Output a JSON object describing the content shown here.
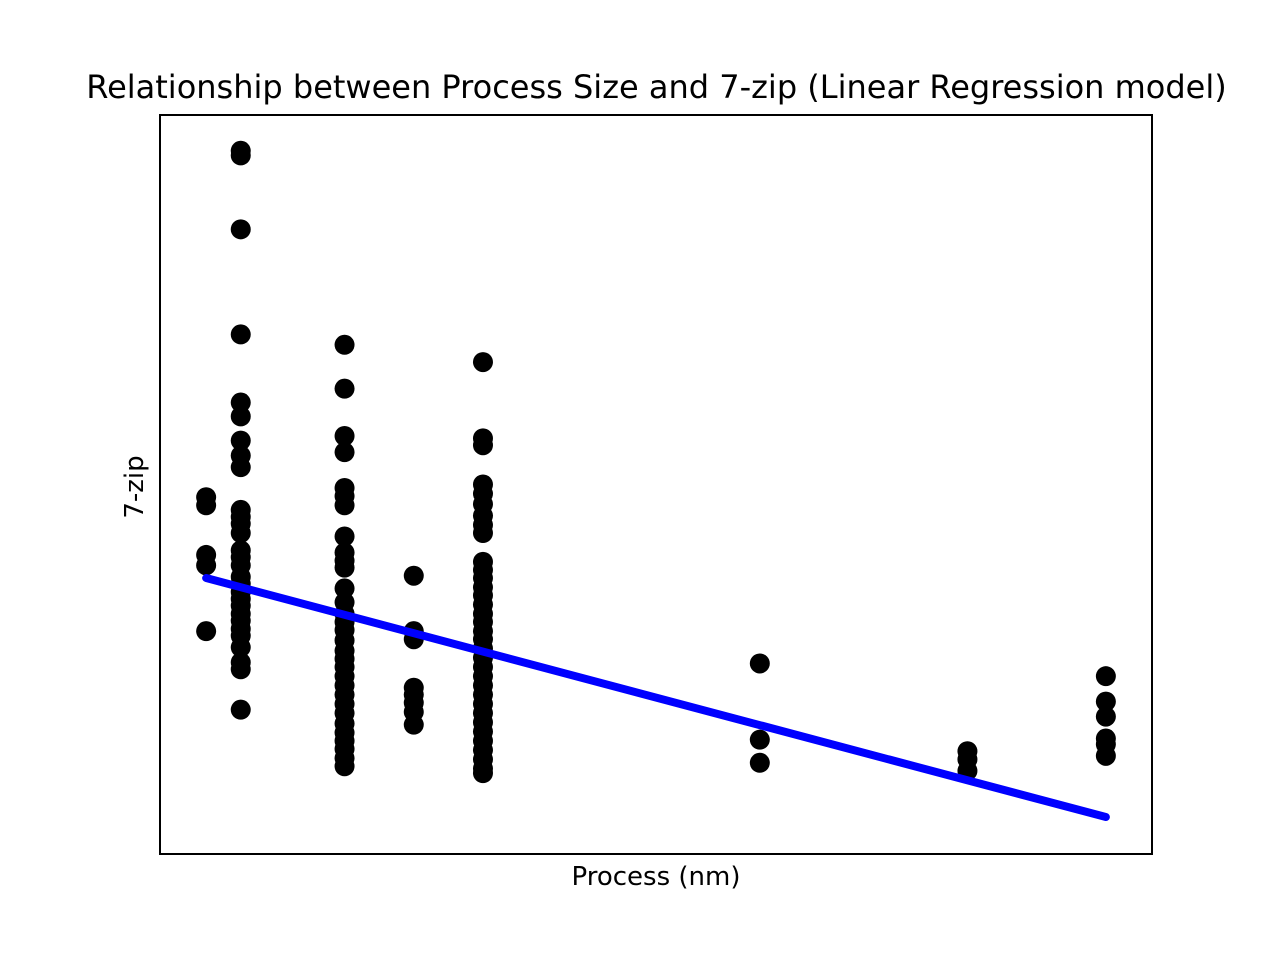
{
  "chart_data": {
    "type": "scatter",
    "title": "Relationship between Process Size and 7-zip (Linear Regression model)",
    "xlabel": "Process (nm)",
    "ylabel": "7-zip",
    "xlim": [
      -2,
      41
    ],
    "ylim": [
      -2,
      62
    ],
    "grid": false,
    "ticks_visible": false,
    "colors": {
      "points": "#000000",
      "regression_line": "#0000ff",
      "frame": "#000000"
    },
    "series": [
      {
        "type": "scatter",
        "points": [
          {
            "x": 0,
            "y": 28.9
          },
          {
            "x": 0,
            "y": 28.2
          },
          {
            "x": 0,
            "y": 23.9
          },
          {
            "x": 0,
            "y": 23.0
          },
          {
            "x": 0,
            "y": 17.3
          },
          {
            "x": 1.5,
            "y": 58.9
          },
          {
            "x": 1.5,
            "y": 58.5
          },
          {
            "x": 1.5,
            "y": 52.1
          },
          {
            "x": 1.5,
            "y": 43.0
          },
          {
            "x": 1.5,
            "y": 37.1
          },
          {
            "x": 1.5,
            "y": 35.9
          },
          {
            "x": 1.5,
            "y": 33.8
          },
          {
            "x": 1.5,
            "y": 32.5
          },
          {
            "x": 1.5,
            "y": 31.5
          },
          {
            "x": 1.5,
            "y": 27.8
          },
          {
            "x": 1.5,
            "y": 27.2
          },
          {
            "x": 1.5,
            "y": 26.6
          },
          {
            "x": 1.5,
            "y": 25.8
          },
          {
            "x": 1.5,
            "y": 24.3
          },
          {
            "x": 1.5,
            "y": 23.7
          },
          {
            "x": 1.5,
            "y": 23.0
          },
          {
            "x": 1.5,
            "y": 22.0
          },
          {
            "x": 1.5,
            "y": 21.4
          },
          {
            "x": 1.5,
            "y": 20.7
          },
          {
            "x": 1.5,
            "y": 20.1
          },
          {
            "x": 1.5,
            "y": 19.5
          },
          {
            "x": 1.5,
            "y": 18.8
          },
          {
            "x": 1.5,
            "y": 18.2
          },
          {
            "x": 1.5,
            "y": 17.5
          },
          {
            "x": 1.5,
            "y": 16.9
          },
          {
            "x": 1.5,
            "y": 15.9
          },
          {
            "x": 1.5,
            "y": 14.6
          },
          {
            "x": 1.5,
            "y": 14.0
          },
          {
            "x": 1.5,
            "y": 10.5
          },
          {
            "x": 6,
            "y": 42.1
          },
          {
            "x": 6,
            "y": 38.3
          },
          {
            "x": 6,
            "y": 34.2
          },
          {
            "x": 6,
            "y": 32.8
          },
          {
            "x": 6,
            "y": 29.7
          },
          {
            "x": 6,
            "y": 29.0
          },
          {
            "x": 6,
            "y": 28.2
          },
          {
            "x": 6,
            "y": 25.5
          },
          {
            "x": 6,
            "y": 24.1
          },
          {
            "x": 6,
            "y": 23.4
          },
          {
            "x": 6,
            "y": 22.8
          },
          {
            "x": 6,
            "y": 21.0
          },
          {
            "x": 6,
            "y": 19.8
          },
          {
            "x": 6,
            "y": 18.8
          },
          {
            "x": 6,
            "y": 18.1
          },
          {
            "x": 6,
            "y": 17.4
          },
          {
            "x": 6,
            "y": 16.5
          },
          {
            "x": 6,
            "y": 15.6
          },
          {
            "x": 6,
            "y": 14.9
          },
          {
            "x": 6,
            "y": 14.2
          },
          {
            "x": 6,
            "y": 13.4
          },
          {
            "x": 6,
            "y": 12.6
          },
          {
            "x": 6,
            "y": 11.8
          },
          {
            "x": 6,
            "y": 11.0
          },
          {
            "x": 6,
            "y": 10.2
          },
          {
            "x": 6,
            "y": 9.3
          },
          {
            "x": 6,
            "y": 8.5
          },
          {
            "x": 6,
            "y": 7.8
          },
          {
            "x": 6,
            "y": 7.1
          },
          {
            "x": 6,
            "y": 6.3
          },
          {
            "x": 6,
            "y": 5.6
          },
          {
            "x": 9,
            "y": 22.1
          },
          {
            "x": 9,
            "y": 17.3
          },
          {
            "x": 9,
            "y": 16.6
          },
          {
            "x": 9,
            "y": 12.4
          },
          {
            "x": 9,
            "y": 11.8
          },
          {
            "x": 9,
            "y": 11.1
          },
          {
            "x": 9,
            "y": 10.3
          },
          {
            "x": 9,
            "y": 9.2
          },
          {
            "x": 12,
            "y": 40.6
          },
          {
            "x": 12,
            "y": 34.0
          },
          {
            "x": 12,
            "y": 33.4
          },
          {
            "x": 12,
            "y": 30.0
          },
          {
            "x": 12,
            "y": 29.2
          },
          {
            "x": 12,
            "y": 28.3
          },
          {
            "x": 12,
            "y": 27.3
          },
          {
            "x": 12,
            "y": 26.5
          },
          {
            "x": 12,
            "y": 25.8
          },
          {
            "x": 12,
            "y": 23.3
          },
          {
            "x": 12,
            "y": 22.6
          },
          {
            "x": 12,
            "y": 21.9
          },
          {
            "x": 12,
            "y": 21.1
          },
          {
            "x": 12,
            "y": 20.4
          },
          {
            "x": 12,
            "y": 19.6
          },
          {
            "x": 12,
            "y": 18.8
          },
          {
            "x": 12,
            "y": 18.1
          },
          {
            "x": 12,
            "y": 17.3
          },
          {
            "x": 12,
            "y": 16.6
          },
          {
            "x": 12,
            "y": 15.8
          },
          {
            "x": 12,
            "y": 15.0
          },
          {
            "x": 12,
            "y": 14.2
          },
          {
            "x": 12,
            "y": 13.4
          },
          {
            "x": 12,
            "y": 12.6
          },
          {
            "x": 12,
            "y": 11.8
          },
          {
            "x": 12,
            "y": 11.0
          },
          {
            "x": 12,
            "y": 10.2
          },
          {
            "x": 12,
            "y": 9.4
          },
          {
            "x": 12,
            "y": 8.6
          },
          {
            "x": 12,
            "y": 7.8
          },
          {
            "x": 12,
            "y": 7.0
          },
          {
            "x": 12,
            "y": 6.2
          },
          {
            "x": 12,
            "y": 5.4
          },
          {
            "x": 12,
            "y": 5.0
          },
          {
            "x": 24,
            "y": 14.5
          },
          {
            "x": 24,
            "y": 7.9
          },
          {
            "x": 24,
            "y": 5.9
          },
          {
            "x": 33,
            "y": 6.9
          },
          {
            "x": 33,
            "y": 6.2
          },
          {
            "x": 33,
            "y": 5.2
          },
          {
            "x": 39,
            "y": 13.4
          },
          {
            "x": 39,
            "y": 11.2
          },
          {
            "x": 39,
            "y": 9.9
          },
          {
            "x": 39,
            "y": 8.0
          },
          {
            "x": 39,
            "y": 7.5
          },
          {
            "x": 39,
            "y": 6.5
          }
        ]
      },
      {
        "type": "line",
        "x": [
          0,
          39
        ],
        "y": [
          21.9,
          1.2
        ]
      }
    ]
  }
}
